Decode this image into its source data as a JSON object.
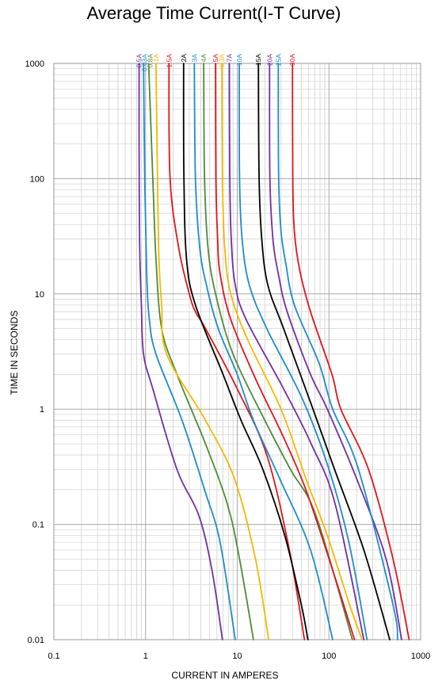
{
  "chart_data": {
    "type": "line",
    "title": "Average Time Current(I-T Curve)",
    "xlabel": "CURRENT IN AMPERES",
    "ylabel": "TIME IN SECONDS",
    "x_scale": "log",
    "y_scale": "log",
    "xlim": [
      0.1,
      1000
    ],
    "ylim": [
      0.01,
      1000
    ],
    "x_ticks": [
      {
        "value": 0.1,
        "label": "0.1"
      },
      {
        "value": 1,
        "label": "1"
      },
      {
        "value": 10,
        "label": "10"
      },
      {
        "value": 100,
        "label": "100"
      },
      {
        "value": 1000,
        "label": "1000"
      }
    ],
    "y_ticks": [
      {
        "value": 0.01,
        "label": "0.01"
      },
      {
        "value": 0.1,
        "label": "0.1"
      },
      {
        "value": 1,
        "label": "1"
      },
      {
        "value": 10,
        "label": "10"
      },
      {
        "value": 100,
        "label": "100"
      },
      {
        "value": 1000,
        "label": "1000"
      }
    ],
    "grid": true,
    "legend": "top, vertical labels above each curve",
    "series": [
      {
        "name": "0.5A",
        "color": "#7030a0",
        "points": [
          [
            0.85,
            1000
          ],
          [
            0.85,
            200
          ],
          [
            0.86,
            30
          ],
          [
            0.9,
            8
          ],
          [
            0.95,
            3
          ],
          [
            1.2,
            1.5
          ],
          [
            2.2,
            0.3
          ],
          [
            3.8,
            0.12
          ],
          [
            5.3,
            0.04
          ],
          [
            6.9,
            0.01
          ]
        ]
      },
      {
        "name": "0.63A",
        "color": "#1f8cc8",
        "points": [
          [
            0.95,
            1000
          ],
          [
            0.98,
            100
          ],
          [
            1.03,
            15
          ],
          [
            1.1,
            6
          ],
          [
            1.3,
            3
          ],
          [
            2.5,
            0.8
          ],
          [
            4.4,
            0.2
          ],
          [
            6.5,
            0.07
          ],
          [
            9.5,
            0.01
          ]
        ]
      },
      {
        "name": "0.8A",
        "color": "#4e8b36",
        "points": [
          [
            1.08,
            1000
          ],
          [
            1.2,
            100
          ],
          [
            1.3,
            20
          ],
          [
            1.5,
            5
          ],
          [
            2.2,
            2
          ],
          [
            4.5,
            0.5
          ],
          [
            7.8,
            0.15
          ],
          [
            10.6,
            0.05
          ],
          [
            15,
            0.01
          ]
        ]
      },
      {
        "name": "1A",
        "color": "#f5b800",
        "points": [
          [
            1.3,
            1000
          ],
          [
            1.35,
            100
          ],
          [
            1.4,
            20
          ],
          [
            1.5,
            8
          ],
          [
            1.7,
            3
          ],
          [
            4.5,
            0.8
          ],
          [
            9.3,
            0.25
          ],
          [
            15.8,
            0.05
          ],
          [
            22,
            0.01
          ]
        ]
      },
      {
        "name": "1.5A",
        "color": "#e0151b",
        "points": [
          [
            1.8,
            1000
          ],
          [
            1.85,
            100
          ],
          [
            2.3,
            25
          ],
          [
            3,
            10
          ],
          [
            3.5,
            7
          ],
          [
            4.5,
            5
          ],
          [
            10,
            1.5
          ],
          [
            21,
            0.4
          ],
          [
            37,
            0.06
          ],
          [
            54,
            0.01
          ]
        ]
      },
      {
        "name": "2A",
        "color": "#000000",
        "points": [
          [
            2.6,
            1000
          ],
          [
            2.62,
            100
          ],
          [
            2.8,
            20
          ],
          [
            3.5,
            8
          ],
          [
            7,
            2
          ],
          [
            11,
            0.8
          ],
          [
            19,
            0.3
          ],
          [
            33,
            0.08
          ],
          [
            50,
            0.02
          ],
          [
            59,
            0.01
          ]
        ]
      },
      {
        "name": "3A",
        "color": "#1f8cc8",
        "points": [
          [
            3.4,
            1000
          ],
          [
            3.5,
            100
          ],
          [
            3.9,
            25
          ],
          [
            4.6,
            12
          ],
          [
            6.2,
            5
          ],
          [
            10,
            2
          ],
          [
            15,
            0.8
          ],
          [
            29,
            0.25
          ],
          [
            63,
            0.06
          ],
          [
            110,
            0.01
          ]
        ]
      },
      {
        "name": "4A",
        "color": "#4e8b36",
        "points": [
          [
            4.3,
            1000
          ],
          [
            4.4,
            100
          ],
          [
            4.8,
            25
          ],
          [
            5.8,
            10
          ],
          [
            9,
            3
          ],
          [
            20,
            0.8
          ],
          [
            38,
            0.3
          ],
          [
            72,
            0.12
          ],
          [
            180,
            0.01
          ]
        ]
      },
      {
        "name": "5A",
        "color": "#e0151b",
        "points": [
          [
            5.8,
            1000
          ],
          [
            5.85,
            100
          ],
          [
            6.1,
            30
          ],
          [
            6.5,
            15
          ],
          [
            8.5,
            6
          ],
          [
            16,
            1.8
          ],
          [
            31,
            0.6
          ],
          [
            56,
            0.2
          ],
          [
            110,
            0.04
          ],
          [
            190,
            0.01
          ]
        ]
      },
      {
        "name": "6.3A",
        "color": "#f5b800",
        "points": [
          [
            6.8,
            1000
          ],
          [
            6.9,
            100
          ],
          [
            7.3,
            25
          ],
          [
            8.5,
            10
          ],
          [
            13,
            4
          ],
          [
            30,
            1
          ],
          [
            56,
            0.25
          ],
          [
            96,
            0.08
          ],
          [
            168,
            0.02
          ],
          [
            230,
            0.01
          ]
        ]
      },
      {
        "name": "7A",
        "color": "#7030a0",
        "points": [
          [
            8.2,
            1000
          ],
          [
            8.3,
            100
          ],
          [
            8.6,
            30
          ],
          [
            9.5,
            12
          ],
          [
            12.5,
            6
          ],
          [
            32,
            1.5
          ],
          [
            64,
            0.5
          ],
          [
            117,
            0.15
          ],
          [
            240,
            0.01
          ]
        ]
      },
      {
        "name": "10A",
        "color": "#1f8cc8",
        "points": [
          [
            10.5,
            1000
          ],
          [
            10.6,
            100
          ],
          [
            11.3,
            30
          ],
          [
            13.5,
            12
          ],
          [
            21,
            5
          ],
          [
            52,
            1.2
          ],
          [
            100,
            0.3
          ],
          [
            165,
            0.07
          ],
          [
            260,
            0.01
          ]
        ]
      },
      {
        "name": "15A",
        "color": "#000000",
        "points": [
          [
            17,
            1000
          ],
          [
            17.3,
            100
          ],
          [
            18.5,
            30
          ],
          [
            21.5,
            12
          ],
          [
            32,
            5
          ],
          [
            67,
            1
          ],
          [
            115,
            0.3
          ],
          [
            240,
            0.06
          ],
          [
            460,
            0.01
          ]
        ]
      },
      {
        "name": "20A",
        "color": "#7030a0",
        "points": [
          [
            22.5,
            1000
          ],
          [
            22.7,
            100
          ],
          [
            24.5,
            30
          ],
          [
            28,
            15
          ],
          [
            35,
            7
          ],
          [
            63,
            2
          ],
          [
            96,
            1
          ],
          [
            200,
            0.25
          ],
          [
            420,
            0.05
          ],
          [
            620,
            0.01
          ]
        ]
      },
      {
        "name": "25A",
        "color": "#1f8cc8",
        "points": [
          [
            28,
            1000
          ],
          [
            28.3,
            100
          ],
          [
            30,
            35
          ],
          [
            34,
            18
          ],
          [
            42,
            8
          ],
          [
            78,
            2.5
          ],
          [
            110,
            1
          ],
          [
            210,
            0.3
          ],
          [
            500,
            0.02
          ],
          [
            560,
            0.01
          ]
        ]
      },
      {
        "name": "30A",
        "color": "#e0151b",
        "points": [
          [
            40,
            1000
          ],
          [
            40.3,
            100
          ],
          [
            42,
            35
          ],
          [
            48,
            16
          ],
          [
            63,
            7
          ],
          [
            108,
            2
          ],
          [
            135,
            1
          ],
          [
            270,
            0.3
          ],
          [
            500,
            0.05
          ],
          [
            750,
            0.01
          ]
        ]
      }
    ]
  }
}
